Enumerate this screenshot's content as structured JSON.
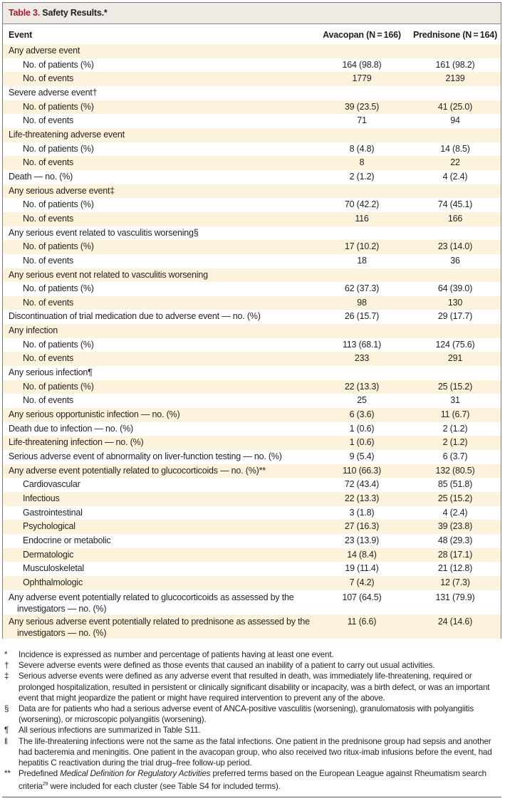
{
  "title": {
    "number": "Table 3.",
    "text": " Safety Results.*"
  },
  "header": {
    "event": "Event",
    "avacopan": "Avacopan (N = 166)",
    "prednisone": "Prednisone (N = 164)"
  },
  "rows": [
    {
      "label": "Any adverse event",
      "indent": false,
      "avacopan": "",
      "prednisone": ""
    },
    {
      "label": "No. of patients (%)",
      "indent": true,
      "avacopan": "164 (98.8)",
      "prednisone": "161 (98.2)"
    },
    {
      "label": "No. of events",
      "indent": true,
      "avacopan": "1779",
      "prednisone": "2139"
    },
    {
      "label": "Severe adverse event†",
      "indent": false,
      "avacopan": "",
      "prednisone": ""
    },
    {
      "label": "No. of patients (%)",
      "indent": true,
      "avacopan": "39 (23.5)",
      "prednisone": "41 (25.0)"
    },
    {
      "label": "No. of events",
      "indent": true,
      "avacopan": "71",
      "prednisone": "94"
    },
    {
      "label": "Life-threatening adverse event",
      "indent": false,
      "avacopan": "",
      "prednisone": ""
    },
    {
      "label": "No. of patients (%)",
      "indent": true,
      "avacopan": "8 (4.8)",
      "prednisone": "14 (8.5)"
    },
    {
      "label": "No. of events",
      "indent": true,
      "avacopan": "8",
      "prednisone": "22"
    },
    {
      "label": "Death — no. (%)",
      "indent": false,
      "avacopan": "2 (1.2)",
      "prednisone": "4 (2.4)"
    },
    {
      "label": "Any serious adverse event‡",
      "indent": false,
      "avacopan": "",
      "prednisone": ""
    },
    {
      "label": "No. of patients (%)",
      "indent": true,
      "avacopan": "70 (42.2)",
      "prednisone": "74 (45.1)"
    },
    {
      "label": "No. of events",
      "indent": true,
      "avacopan": "116",
      "prednisone": "166"
    },
    {
      "label": "Any serious event related to vasculitis worsening§",
      "indent": false,
      "avacopan": "",
      "prednisone": ""
    },
    {
      "label": "No. of patients (%)",
      "indent": true,
      "avacopan": "17 (10.2)",
      "prednisone": "23 (14.0)"
    },
    {
      "label": "No. of events",
      "indent": true,
      "avacopan": "18",
      "prednisone": "36"
    },
    {
      "label": "Any serious event not related to vasculitis worsening",
      "indent": false,
      "avacopan": "",
      "prednisone": ""
    },
    {
      "label": "No. of patients (%)",
      "indent": true,
      "avacopan": "62 (37.3)",
      "prednisone": "64 (39.0)"
    },
    {
      "label": "No. of events",
      "indent": true,
      "avacopan": "98",
      "prednisone": "130"
    },
    {
      "label": "Discontinuation of trial medication due to adverse event — no. (%)",
      "indent": false,
      "avacopan": "26 (15.7)",
      "prednisone": "29 (17.7)"
    },
    {
      "label": "Any infection",
      "indent": false,
      "avacopan": "",
      "prednisone": ""
    },
    {
      "label": "No. of patients (%)",
      "indent": true,
      "avacopan": "113 (68.1)",
      "prednisone": "124 (75.6)"
    },
    {
      "label": "No. of events",
      "indent": true,
      "avacopan": "233",
      "prednisone": "291"
    },
    {
      "label": "Any serious infection¶",
      "indent": false,
      "avacopan": "",
      "prednisone": ""
    },
    {
      "label": "No. of patients (%)",
      "indent": true,
      "avacopan": "22 (13.3)",
      "prednisone": "25 (15.2)"
    },
    {
      "label": "No. of events",
      "indent": true,
      "avacopan": "25",
      "prednisone": "31"
    },
    {
      "label": "Any serious opportunistic infection — no. (%)",
      "indent": false,
      "avacopan": "6 (3.6)",
      "prednisone": "11 (6.7)"
    },
    {
      "label": "Death due to infection — no. (%)",
      "indent": false,
      "avacopan": "1 (0.6)",
      "prednisone": "2 (1.2)"
    },
    {
      "label": "Life-threatening infection — no. (%)",
      "indent": false,
      "avacopan": "1 (0.6)",
      "prednisone": "2 (1.2)"
    },
    {
      "label": "Serious adverse event of abnormality on liver-function testing — no. (%)",
      "indent": false,
      "avacopan": "9 (5.4)",
      "prednisone": "6 (3.7)"
    },
    {
      "label": "Any adverse event potentially related to glucocorticoids — no. (%)**",
      "indent": false,
      "avacopan": "110 (66.3)",
      "prednisone": "132 (80.5)"
    },
    {
      "label": "Cardiovascular",
      "indent": true,
      "avacopan": "72 (43.4)",
      "prednisone": "85 (51.8)"
    },
    {
      "label": "Infectious",
      "indent": true,
      "avacopan": "22 (13.3)",
      "prednisone": "25 (15.2)"
    },
    {
      "label": "Gastrointestinal",
      "indent": true,
      "avacopan": "3 (1.8)",
      "prednisone": "4 (2.4)"
    },
    {
      "label": "Psychological",
      "indent": true,
      "avacopan": "27 (16.3)",
      "prednisone": "39 (23.8)"
    },
    {
      "label": "Endocrine or metabolic",
      "indent": true,
      "avacopan": "23 (13.9)",
      "prednisone": "48 (29.3)"
    },
    {
      "label": "Dermatologic",
      "indent": true,
      "avacopan": "14 (8.4)",
      "prednisone": "28 (17.1)"
    },
    {
      "label": "Musculoskeletal",
      "indent": true,
      "avacopan": "19 (11.4)",
      "prednisone": "21 (12.8)"
    },
    {
      "label": "Ophthalmologic",
      "indent": true,
      "avacopan": "7 (4.2)",
      "prednisone": "12 (7.3)"
    },
    {
      "label": "Any adverse event potentially related to glucocorticoids as assessed by the investigators — no. (%)",
      "indent": false,
      "tall": true,
      "avacopan": "107 (64.5)",
      "prednisone": "131 (79.9)"
    },
    {
      "label": "Any serious adverse event potentially related to prednisone as assessed by the investigators — no. (%)",
      "indent": false,
      "tall": true,
      "avacopan": "11 (6.6)",
      "prednisone": "24 (14.6)"
    }
  ],
  "footnotes": [
    {
      "symbol": "*",
      "text": "Incidence is expressed as number and percentage of patients having at least one event."
    },
    {
      "symbol": "†",
      "text": "Severe adverse events were defined as those events that caused an inability of a patient to carry out usual activities."
    },
    {
      "symbol": "‡",
      "text": "Serious adverse events were defined as any adverse event that resulted in death, was immediately life-threatening, required or prolonged hospitalization, resulted in persistent or clinically significant disability or incapacity, was a birth defect, or was an important event that might jeopardize the patient or might have required intervention to prevent any of the above."
    },
    {
      "symbol": "§",
      "text": "Data are for patients who had a serious adverse event of ANCA-positive vasculitis (worsening), granulomatosis with polyangiitis (worsening), or microscopic polyangiitis (worsening)."
    },
    {
      "symbol": "¶",
      "text": "All serious infections are summarized in Table S11."
    },
    {
      "symbol": "‖",
      "text": "The life-threatening infections were not the same as the fatal infections. One patient in the prednisone group had sepsis and another had bacteremia and meningitis. One patient in the avacopan group, who also received two ritux-imab infusions before the event, had hepatitis C reactivation during the trial drug–free follow-up period."
    },
    {
      "symbol": "**",
      "text_before": "Predefined ",
      "italic": "Medical Definition for Regulatory Activities",
      "text_mid": " preferred terms based on the European League against Rheumatism search criteria",
      "sup": "29",
      "text_after": " were included for each cluster (see Table S4 for included terms)."
    }
  ]
}
